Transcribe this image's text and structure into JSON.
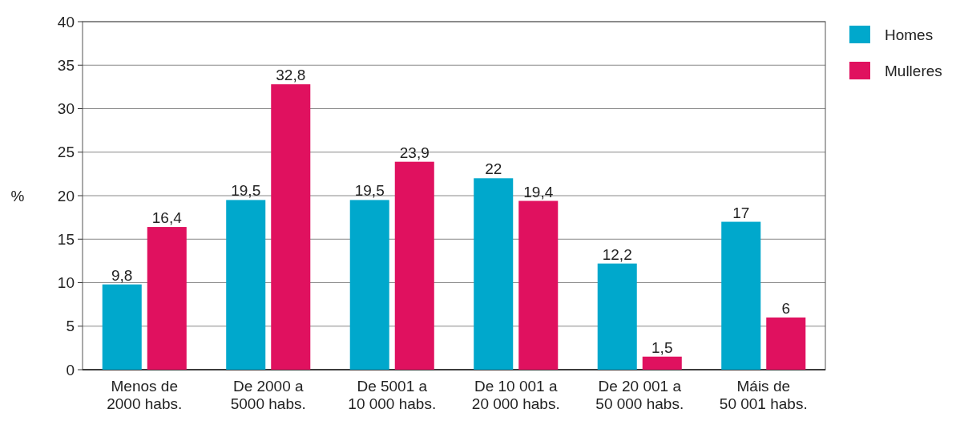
{
  "chart_data": {
    "type": "bar",
    "ylabel": "%",
    "categories": [
      "Menos de\n2000 habs.",
      "De 2000 a\n5000 habs.",
      "De 5001 a\n10 000 habs.",
      "De 10 001 a\n20 000 habs.",
      "De 20 001 a\n50 000 habs.",
      "Máis de\n50 001 habs."
    ],
    "series": [
      {
        "name": "Homes",
        "color": "#00a8cc",
        "values": [
          9.8,
          19.5,
          19.5,
          22,
          12.2,
          17
        ],
        "value_labels": [
          "9,8",
          "19,5",
          "19,5",
          "22",
          "12,2",
          "17"
        ]
      },
      {
        "name": "Mulleres",
        "color": "#e0115f",
        "values": [
          16.4,
          32.8,
          23.9,
          19.4,
          1.5,
          6
        ],
        "value_labels": [
          "16,4",
          "32,8",
          "23,9",
          "19,4",
          "1,5",
          "6"
        ]
      }
    ],
    "ylim": [
      0,
      40
    ],
    "yticks": [
      0,
      5,
      10,
      15,
      20,
      25,
      30,
      35,
      40
    ],
    "grid": "y",
    "legend": "top right"
  }
}
